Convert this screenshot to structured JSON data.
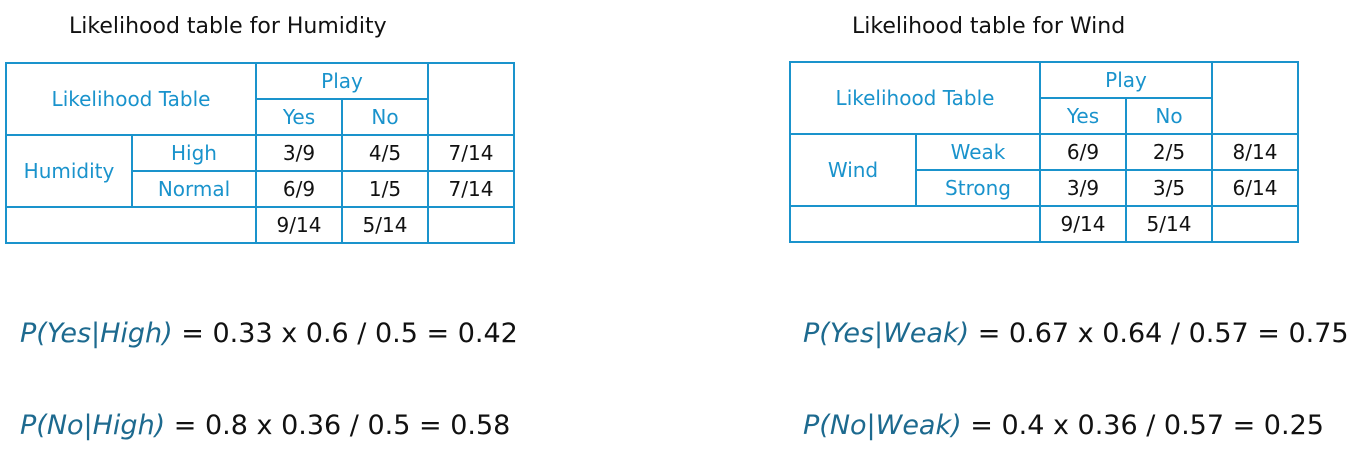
{
  "humidity": {
    "title": "Likelihood table for Humidity",
    "table": {
      "corner_label": "Likelihood Table",
      "group_header": "Play",
      "col_yes": "Yes",
      "col_no": "No",
      "row_group": "Humidity",
      "rows": [
        {
          "label": "High",
          "yes": "3/9",
          "no": "4/5",
          "total": "7/14"
        },
        {
          "label": "Normal",
          "yes": "6/9",
          "no": "1/5",
          "total": "7/14"
        }
      ],
      "totals": {
        "yes": "9/14",
        "no": "5/14"
      }
    },
    "formulas": [
      {
        "lhs": "P(Yes|High)",
        "rhs": " = 0.33 x 0.6 / 0.5 = 0.42"
      },
      {
        "lhs": "P(No|High)",
        "rhs": " = 0.8 x 0.36 / 0.5 = 0.58"
      }
    ]
  },
  "wind": {
    "title": "Likelihood table for Wind",
    "table": {
      "corner_label": "Likelihood Table",
      "group_header": "Play",
      "col_yes": "Yes",
      "col_no": "No",
      "row_group": "Wind",
      "rows": [
        {
          "label": "Weak",
          "yes": "6/9",
          "no": "2/5",
          "total": "8/14"
        },
        {
          "label": "Strong",
          "yes": "3/9",
          "no": "3/5",
          "total": "6/14"
        }
      ],
      "totals": {
        "yes": "9/14",
        "no": "5/14"
      }
    },
    "formulas": [
      {
        "lhs": "P(Yes|Weak)",
        "rhs": " = 0.67 x 0.64 / 0.57 = 0.75"
      },
      {
        "lhs": "P(No|Weak)",
        "rhs": " = 0.4 x 0.36 / 0.57 = 0.25"
      }
    ]
  },
  "colors": {
    "table_border": "#1a93cc",
    "label_text": "#1a93cc",
    "formula_lhs": "#1d6a8f"
  }
}
